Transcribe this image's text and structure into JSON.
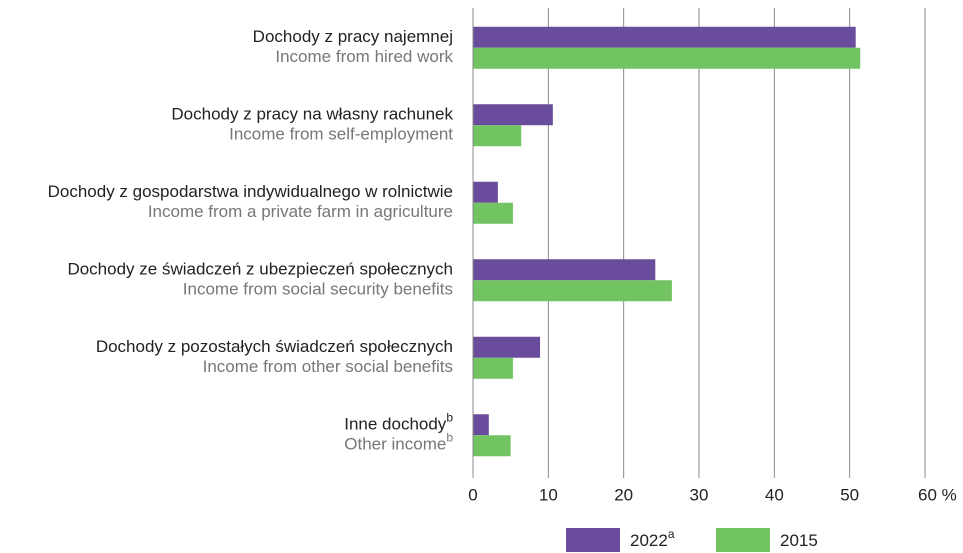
{
  "chart_data": {
    "type": "barh",
    "categories": [
      {
        "label": "Dochody z pracy najemnej",
        "label_en": "Income from hired work"
      },
      {
        "label": "Dochody z pracy na własny rachunek",
        "label_en": "Income from self-employment"
      },
      {
        "label": "Dochody z gospodarstwa indywidualnego w rolnictwie",
        "label_en": "Income from a private farm in agriculture"
      },
      {
        "label": "Dochody ze świadczeń z ubezpieczeń społecznych",
        "label_en": "Income from social security benefits"
      },
      {
        "label": "Dochody z pozostałych świadczeń społecznych",
        "label_en": "Income from other social benefits"
      },
      {
        "label": "Inne dochody",
        "label_en": "Other income",
        "note": "b"
      }
    ],
    "series": [
      {
        "name": "2022",
        "note": "a",
        "color": "#6a4c9c",
        "values": [
          50.8,
          10.6,
          3.3,
          24.2,
          8.9,
          2.1
        ]
      },
      {
        "name": "2015",
        "color": "#72c462",
        "values": [
          51.4,
          6.4,
          5.3,
          26.4,
          5.3,
          5.0
        ]
      }
    ],
    "xlim": [
      0,
      60
    ],
    "xticks": [
      0,
      10,
      20,
      30,
      40,
      50,
      {
        "value": 60,
        "label": "60 %"
      }
    ],
    "grid": true,
    "legend": "bottom"
  }
}
